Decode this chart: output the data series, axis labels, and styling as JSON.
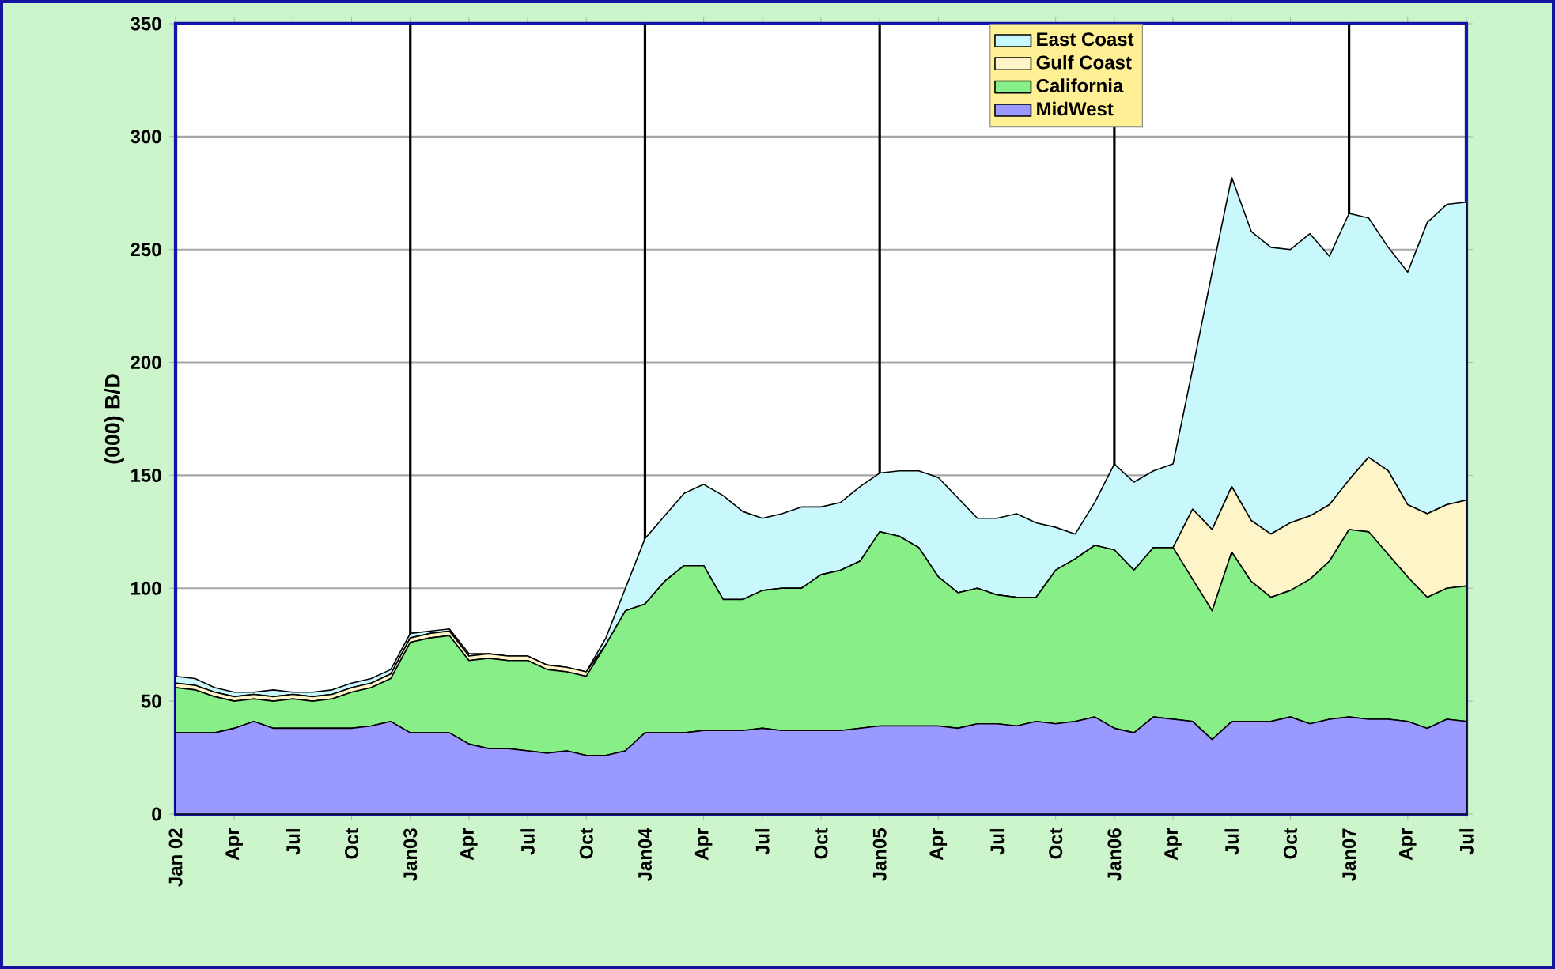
{
  "chart_data": {
    "type": "area",
    "stacked": true,
    "ylabel": "(000) B/D",
    "categories": [
      "Jan 02",
      null,
      null,
      "Apr",
      null,
      null,
      "Jul",
      null,
      null,
      "Oct",
      null,
      null,
      "Jan03",
      null,
      null,
      "Apr",
      null,
      null,
      "Jul",
      null,
      null,
      "Oct",
      null,
      null,
      "Jan04",
      null,
      null,
      "Apr",
      null,
      null,
      "Jul",
      null,
      null,
      "Oct",
      null,
      null,
      "Jan05",
      null,
      null,
      "Apr",
      null,
      null,
      "Jul",
      null,
      null,
      "Oct",
      null,
      null,
      "Jan06",
      null,
      null,
      "Apr",
      null,
      null,
      "Jul",
      null,
      null,
      "Oct",
      null,
      null,
      "Jan07",
      null,
      null,
      "Apr",
      null,
      null,
      "Jul"
    ],
    "series": [
      {
        "name": "MidWest",
        "color": "#9999ff",
        "values": [
          36,
          36,
          36,
          38,
          41,
          38,
          38,
          38,
          38,
          38,
          39,
          41,
          36,
          36,
          36,
          31,
          29,
          29,
          28,
          27,
          28,
          26,
          26,
          28,
          36,
          36,
          36,
          37,
          37,
          37,
          38,
          37,
          37,
          37,
          37,
          38,
          39,
          39,
          39,
          39,
          38,
          40,
          40,
          39,
          41,
          40,
          41,
          43,
          38,
          36,
          43,
          42,
          41,
          33,
          41,
          41,
          41,
          43,
          40,
          42,
          43,
          42,
          42,
          41,
          38,
          42,
          41
        ]
      },
      {
        "name": "California",
        "color": "#88ee88",
        "values": [
          20,
          19,
          16,
          12,
          10,
          12,
          13,
          12,
          13,
          16,
          17,
          19,
          40,
          42,
          43,
          37,
          40,
          39,
          40,
          37,
          35,
          35,
          49,
          62,
          57,
          67,
          74,
          73,
          58,
          58,
          61,
          63,
          63,
          69,
          71,
          74,
          86,
          84,
          79,
          66,
          60,
          60,
          57,
          57,
          55,
          68,
          72,
          76,
          79,
          72,
          75,
          76,
          63,
          57,
          75,
          62,
          55,
          56,
          64,
          70,
          83,
          83,
          73,
          64,
          58,
          58,
          60
        ]
      },
      {
        "name": "Gulf Coast",
        "color": "#fdf5c8",
        "values": [
          2,
          2,
          2,
          2,
          2,
          2,
          2,
          2,
          2,
          2,
          2,
          2,
          2,
          2,
          2,
          2,
          2,
          2,
          2,
          2,
          2,
          2,
          0,
          0,
          0,
          0,
          0,
          0,
          0,
          0,
          0,
          0,
          0,
          0,
          0,
          0,
          0,
          0,
          0,
          0,
          0,
          0,
          0,
          0,
          0,
          0,
          0,
          0,
          0,
          0,
          0,
          0,
          31,
          36,
          29,
          27,
          28,
          30,
          28,
          25,
          22,
          33,
          37,
          32,
          37,
          37,
          38
        ]
      },
      {
        "name": "East Coast",
        "color": "#c8f8fc",
        "values": [
          3,
          3,
          2,
          2,
          1,
          3,
          1,
          2,
          2,
          2,
          2,
          2,
          2,
          1,
          1,
          1,
          0,
          0,
          0,
          0,
          0,
          0,
          3,
          10,
          29,
          29,
          32,
          36,
          46,
          39,
          32,
          33,
          36,
          30,
          30,
          33,
          26,
          29,
          34,
          44,
          42,
          31,
          34,
          37,
          33,
          19,
          11,
          19,
          38,
          39,
          34,
          37,
          62,
          114,
          137,
          128,
          127,
          121,
          125,
          110,
          118,
          106,
          99,
          103,
          129,
          133,
          132
        ]
      }
    ],
    "ylim": [
      0,
      350
    ],
    "yticks": [
      0,
      50,
      100,
      150,
      200,
      250,
      300,
      350
    ],
    "grid": "y",
    "legend": "top",
    "ref_lines": [
      {
        "axis": "x",
        "value": "Jan03",
        "color": "#000000"
      },
      {
        "axis": "x",
        "value": "Jan04",
        "color": "#000000"
      },
      {
        "axis": "x",
        "value": "Jan05",
        "color": "#000000"
      },
      {
        "axis": "x",
        "value": "Jan06",
        "color": "#000000"
      },
      {
        "axis": "x",
        "value": "Jan07",
        "color": "#000000"
      }
    ]
  }
}
